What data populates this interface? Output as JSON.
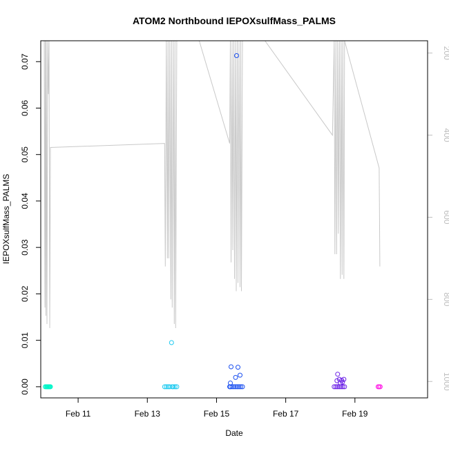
{
  "chart_data": {
    "type": "scatter",
    "title": "ATOM2 Northbound IEPOXsulfMass_PALMS",
    "xlabel": "Date",
    "ylabel": "IEPOXsulfMass_PALMS",
    "x_tick_labels": [
      "Feb 11",
      "Feb 13",
      "Feb 15",
      "Feb 17",
      "Feb 19"
    ],
    "x_tick_values": [
      11,
      13,
      15,
      17,
      19
    ],
    "xlim": [
      9.92,
      21.1
    ],
    "y_ticks": [
      "0.00",
      "0.01",
      "0.02",
      "0.03",
      "0.04",
      "0.05",
      "0.06",
      "0.07"
    ],
    "ylim": [
      -0.0024,
      0.0745
    ],
    "y2_ticks": [
      "200",
      "400",
      "600",
      "800",
      "1000"
    ],
    "y2_note": "secondary pressure axis (inverted, gray)",
    "y2lim": [
      1040,
      170
    ],
    "grid": false,
    "series": [
      {
        "color": "#00f5c8",
        "x": [
          10.05,
          10.08,
          10.1,
          10.12,
          10.14,
          10.16,
          10.18,
          10.2
        ],
        "y": [
          0,
          0,
          0,
          0,
          0,
          0,
          0,
          0
        ]
      },
      {
        "color": "#1ecaf0",
        "x": [
          13.5,
          13.55,
          13.6,
          13.65,
          13.7,
          13.72,
          13.75,
          13.8,
          13.85
        ],
        "y": [
          0,
          0,
          0,
          0,
          0.0095,
          0,
          0,
          0,
          0
        ]
      },
      {
        "color": "#1a4ff0",
        "x": [
          15.38,
          15.4,
          15.45,
          15.5,
          15.55,
          15.6,
          15.65,
          15.7,
          15.75,
          15.58,
          15.42,
          15.62,
          15.68,
          15.4,
          15.55
        ],
        "y": [
          0,
          0,
          0,
          0,
          0,
          0,
          0,
          0,
          0,
          0.0713,
          0.0043,
          0.0042,
          0.0025,
          0.0008,
          0.002
        ]
      },
      {
        "color": "#6a1ee6",
        "x": [
          18.4,
          18.45,
          18.5,
          18.55,
          18.6,
          18.65,
          18.7,
          18.5,
          18.55,
          18.62,
          18.68,
          18.48,
          18.58,
          18.64
        ],
        "y": [
          0,
          0,
          0,
          0,
          0,
          0,
          0,
          0.0027,
          0.0016,
          0.0014,
          0.0016,
          0.0013,
          0.0008,
          0.001
        ]
      },
      {
        "color": "#ff1ee6",
        "x": [
          19.67,
          19.7,
          19.73
        ],
        "y": [
          0,
          0,
          0
        ]
      }
    ],
    "pressure_trace": {
      "color": "#c8c8c8",
      "x": [
        10.02,
        10.04,
        10.05,
        10.07,
        10.08,
        10.1,
        10.12,
        10.14,
        10.16,
        10.18,
        10.2,
        13.5,
        13.52,
        13.55,
        13.58,
        13.6,
        13.62,
        13.65,
        13.68,
        13.7,
        13.72,
        13.75,
        13.78,
        13.8,
        13.82,
        13.85,
        14.5,
        15.38,
        15.4,
        15.42,
        15.45,
        15.47,
        15.5,
        15.52,
        15.55,
        15.57,
        15.6,
        15.62,
        15.65,
        15.68,
        15.7,
        15.72,
        15.75,
        16.4,
        18.35,
        18.4,
        18.42,
        18.45,
        18.47,
        18.5,
        18.52,
        18.55,
        18.58,
        18.6,
        18.63,
        18.65,
        18.68,
        18.7,
        19.7,
        19.72
      ],
      "y": [
        170,
        820,
        170,
        840,
        170,
        860,
        170,
        300,
        170,
        870,
        430,
        420,
        720,
        170,
        700,
        170,
        700,
        170,
        800,
        170,
        820,
        170,
        860,
        170,
        870,
        170,
        170,
        420,
        170,
        710,
        170,
        680,
        170,
        750,
        170,
        780,
        170,
        760,
        170,
        770,
        170,
        780,
        170,
        170,
        400,
        170,
        690,
        170,
        690,
        170,
        640,
        170,
        750,
        170,
        740,
        170,
        750,
        170,
        480,
        720
      ]
    }
  }
}
